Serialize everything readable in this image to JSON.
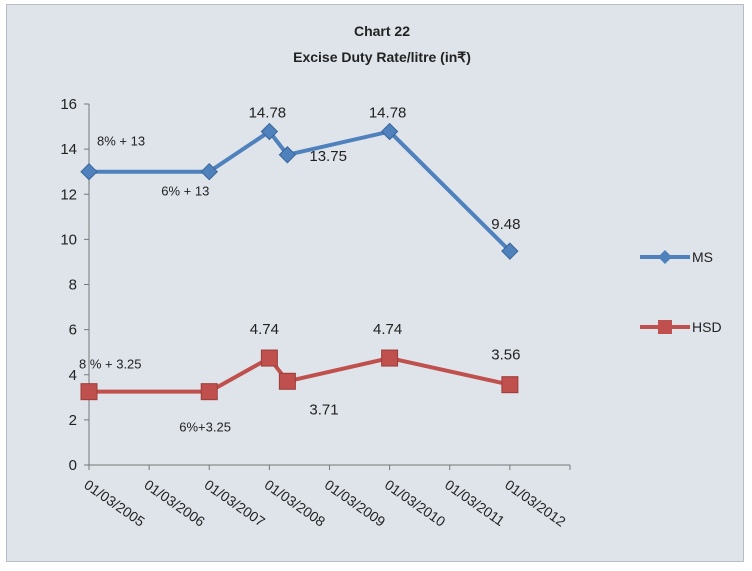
{
  "chart_data": {
    "type": "line",
    "title": "Chart 22",
    "subtitle": "Excise Duty Rate/litre (in₹)",
    "x_ticks": [
      "01/03/2005",
      "01/03/2006",
      "01/03/2007",
      "01/03/2008",
      "01/03/2009",
      "01/03/2010",
      "01/03/2011",
      "01/03/2012"
    ],
    "ylim": [
      0,
      16
    ],
    "y_ticks": [
      "0",
      "2",
      "4",
      "6",
      "8",
      "10",
      "12",
      "14",
      "16"
    ],
    "grid": false,
    "legend_position": "right",
    "series": [
      {
        "name": "MS",
        "color": "#4f81bd",
        "marker": "diamond",
        "x": [
          "01/03/2005",
          "01/03/2007",
          "01/03/2008",
          "01/03/2008",
          "01/03/2010",
          "01/03/2012"
        ],
        "y": [
          13,
          13,
          14.78,
          13.75,
          14.78,
          9.48
        ]
      },
      {
        "name": "HSD",
        "color": "#c0504d",
        "marker": "square",
        "x": [
          "01/03/2005",
          "01/03/2007",
          "01/03/2008",
          "01/03/2008",
          "01/03/2010",
          "01/03/2012"
        ],
        "y": [
          3.25,
          3.25,
          4.74,
          3.71,
          4.74,
          3.56
        ]
      }
    ],
    "annotations": [
      {
        "text": "8% + 13",
        "series": "MS",
        "point": 0
      },
      {
        "text": "6% + 13",
        "series": "MS",
        "point": 1
      },
      {
        "text": "14.78",
        "series": "MS",
        "point": 2
      },
      {
        "text": "13.75",
        "series": "MS",
        "point": 3
      },
      {
        "text": "14.78",
        "series": "MS",
        "point": 4
      },
      {
        "text": "9.48",
        "series": "MS",
        "point": 5
      },
      {
        "text": "8 % + 3.25",
        "series": "HSD",
        "point": 0
      },
      {
        "text": "6%+3.25",
        "series": "HSD",
        "point": 1
      },
      {
        "text": "4.74",
        "series": "HSD",
        "point": 2
      },
      {
        "text": "3.71",
        "series": "HSD",
        "point": 3
      },
      {
        "text": "4.74",
        "series": "HSD",
        "point": 4
      },
      {
        "text": "3.56",
        "series": "HSD",
        "point": 5
      }
    ]
  }
}
